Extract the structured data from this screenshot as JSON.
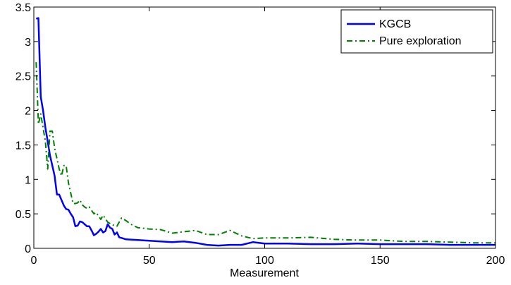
{
  "chart_data": {
    "type": "line",
    "title": "",
    "xlabel": "Measurement",
    "ylabel": "",
    "xlim": [
      0,
      200
    ],
    "ylim": [
      0,
      3.5
    ],
    "xticks": [
      0,
      50,
      100,
      150,
      200
    ],
    "yticks": [
      0,
      0.5,
      1,
      1.5,
      2,
      2.5,
      3,
      3.5
    ],
    "xtick_labels": [
      "0",
      "50",
      "100",
      "150",
      "200"
    ],
    "ytick_labels": [
      "0",
      "0.5",
      "1",
      "1.5",
      "2",
      "2.5",
      "3",
      "3.5"
    ],
    "grid": false,
    "legend_position": "top-right",
    "series": [
      {
        "name": "KGCB",
        "color": "#0000ff",
        "style": "solid",
        "x": [
          1,
          2,
          3,
          4,
          5,
          6,
          7,
          8,
          9,
          10,
          11,
          12,
          13,
          14,
          15,
          16,
          17,
          18,
          19,
          20,
          21,
          22,
          23,
          24,
          25,
          26,
          27,
          28,
          29,
          30,
          31,
          32,
          33,
          34,
          35,
          36,
          37,
          38,
          39,
          40,
          45,
          50,
          55,
          60,
          65,
          70,
          75,
          80,
          85,
          90,
          95,
          100,
          110,
          120,
          130,
          140,
          150,
          160,
          170,
          180,
          190,
          200
        ],
        "y": [
          3.33,
          3.34,
          2.2,
          2.0,
          1.75,
          1.55,
          1.35,
          1.2,
          1.05,
          0.78,
          0.78,
          0.7,
          0.62,
          0.57,
          0.56,
          0.5,
          0.45,
          0.32,
          0.33,
          0.39,
          0.38,
          0.35,
          0.32,
          0.32,
          0.26,
          0.19,
          0.21,
          0.24,
          0.28,
          0.23,
          0.25,
          0.35,
          0.3,
          0.28,
          0.2,
          0.23,
          0.16,
          0.15,
          0.14,
          0.13,
          0.12,
          0.11,
          0.1,
          0.09,
          0.1,
          0.08,
          0.05,
          0.04,
          0.05,
          0.05,
          0.09,
          0.07,
          0.07,
          0.06,
          0.06,
          0.07,
          0.06,
          0.06,
          0.06,
          0.05,
          0.05,
          0.05
        ]
      },
      {
        "name": "Pure exploration",
        "color": "#008000",
        "style": "dash-dot",
        "x": [
          1,
          2,
          3,
          4,
          5,
          6,
          7,
          8,
          9,
          10,
          11,
          12,
          13,
          14,
          15,
          16,
          17,
          18,
          19,
          20,
          21,
          22,
          23,
          24,
          25,
          26,
          27,
          28,
          29,
          30,
          32,
          34,
          36,
          38,
          40,
          42,
          45,
          50,
          55,
          60,
          65,
          70,
          75,
          80,
          85,
          90,
          95,
          100,
          110,
          120,
          130,
          140,
          150,
          160,
          170,
          180,
          190,
          200
        ],
        "y": [
          2.7,
          1.8,
          1.95,
          1.75,
          1.55,
          1.15,
          1.7,
          1.7,
          1.45,
          1.3,
          1.15,
          1.05,
          1.2,
          1.2,
          0.95,
          0.8,
          0.65,
          0.65,
          0.66,
          0.7,
          0.63,
          0.6,
          0.58,
          0.6,
          0.55,
          0.5,
          0.52,
          0.47,
          0.42,
          0.48,
          0.38,
          0.34,
          0.32,
          0.44,
          0.4,
          0.35,
          0.3,
          0.28,
          0.27,
          0.22,
          0.24,
          0.26,
          0.2,
          0.2,
          0.26,
          0.18,
          0.14,
          0.15,
          0.15,
          0.16,
          0.13,
          0.12,
          0.12,
          0.1,
          0.1,
          0.09,
          0.08,
          0.08
        ]
      }
    ]
  }
}
